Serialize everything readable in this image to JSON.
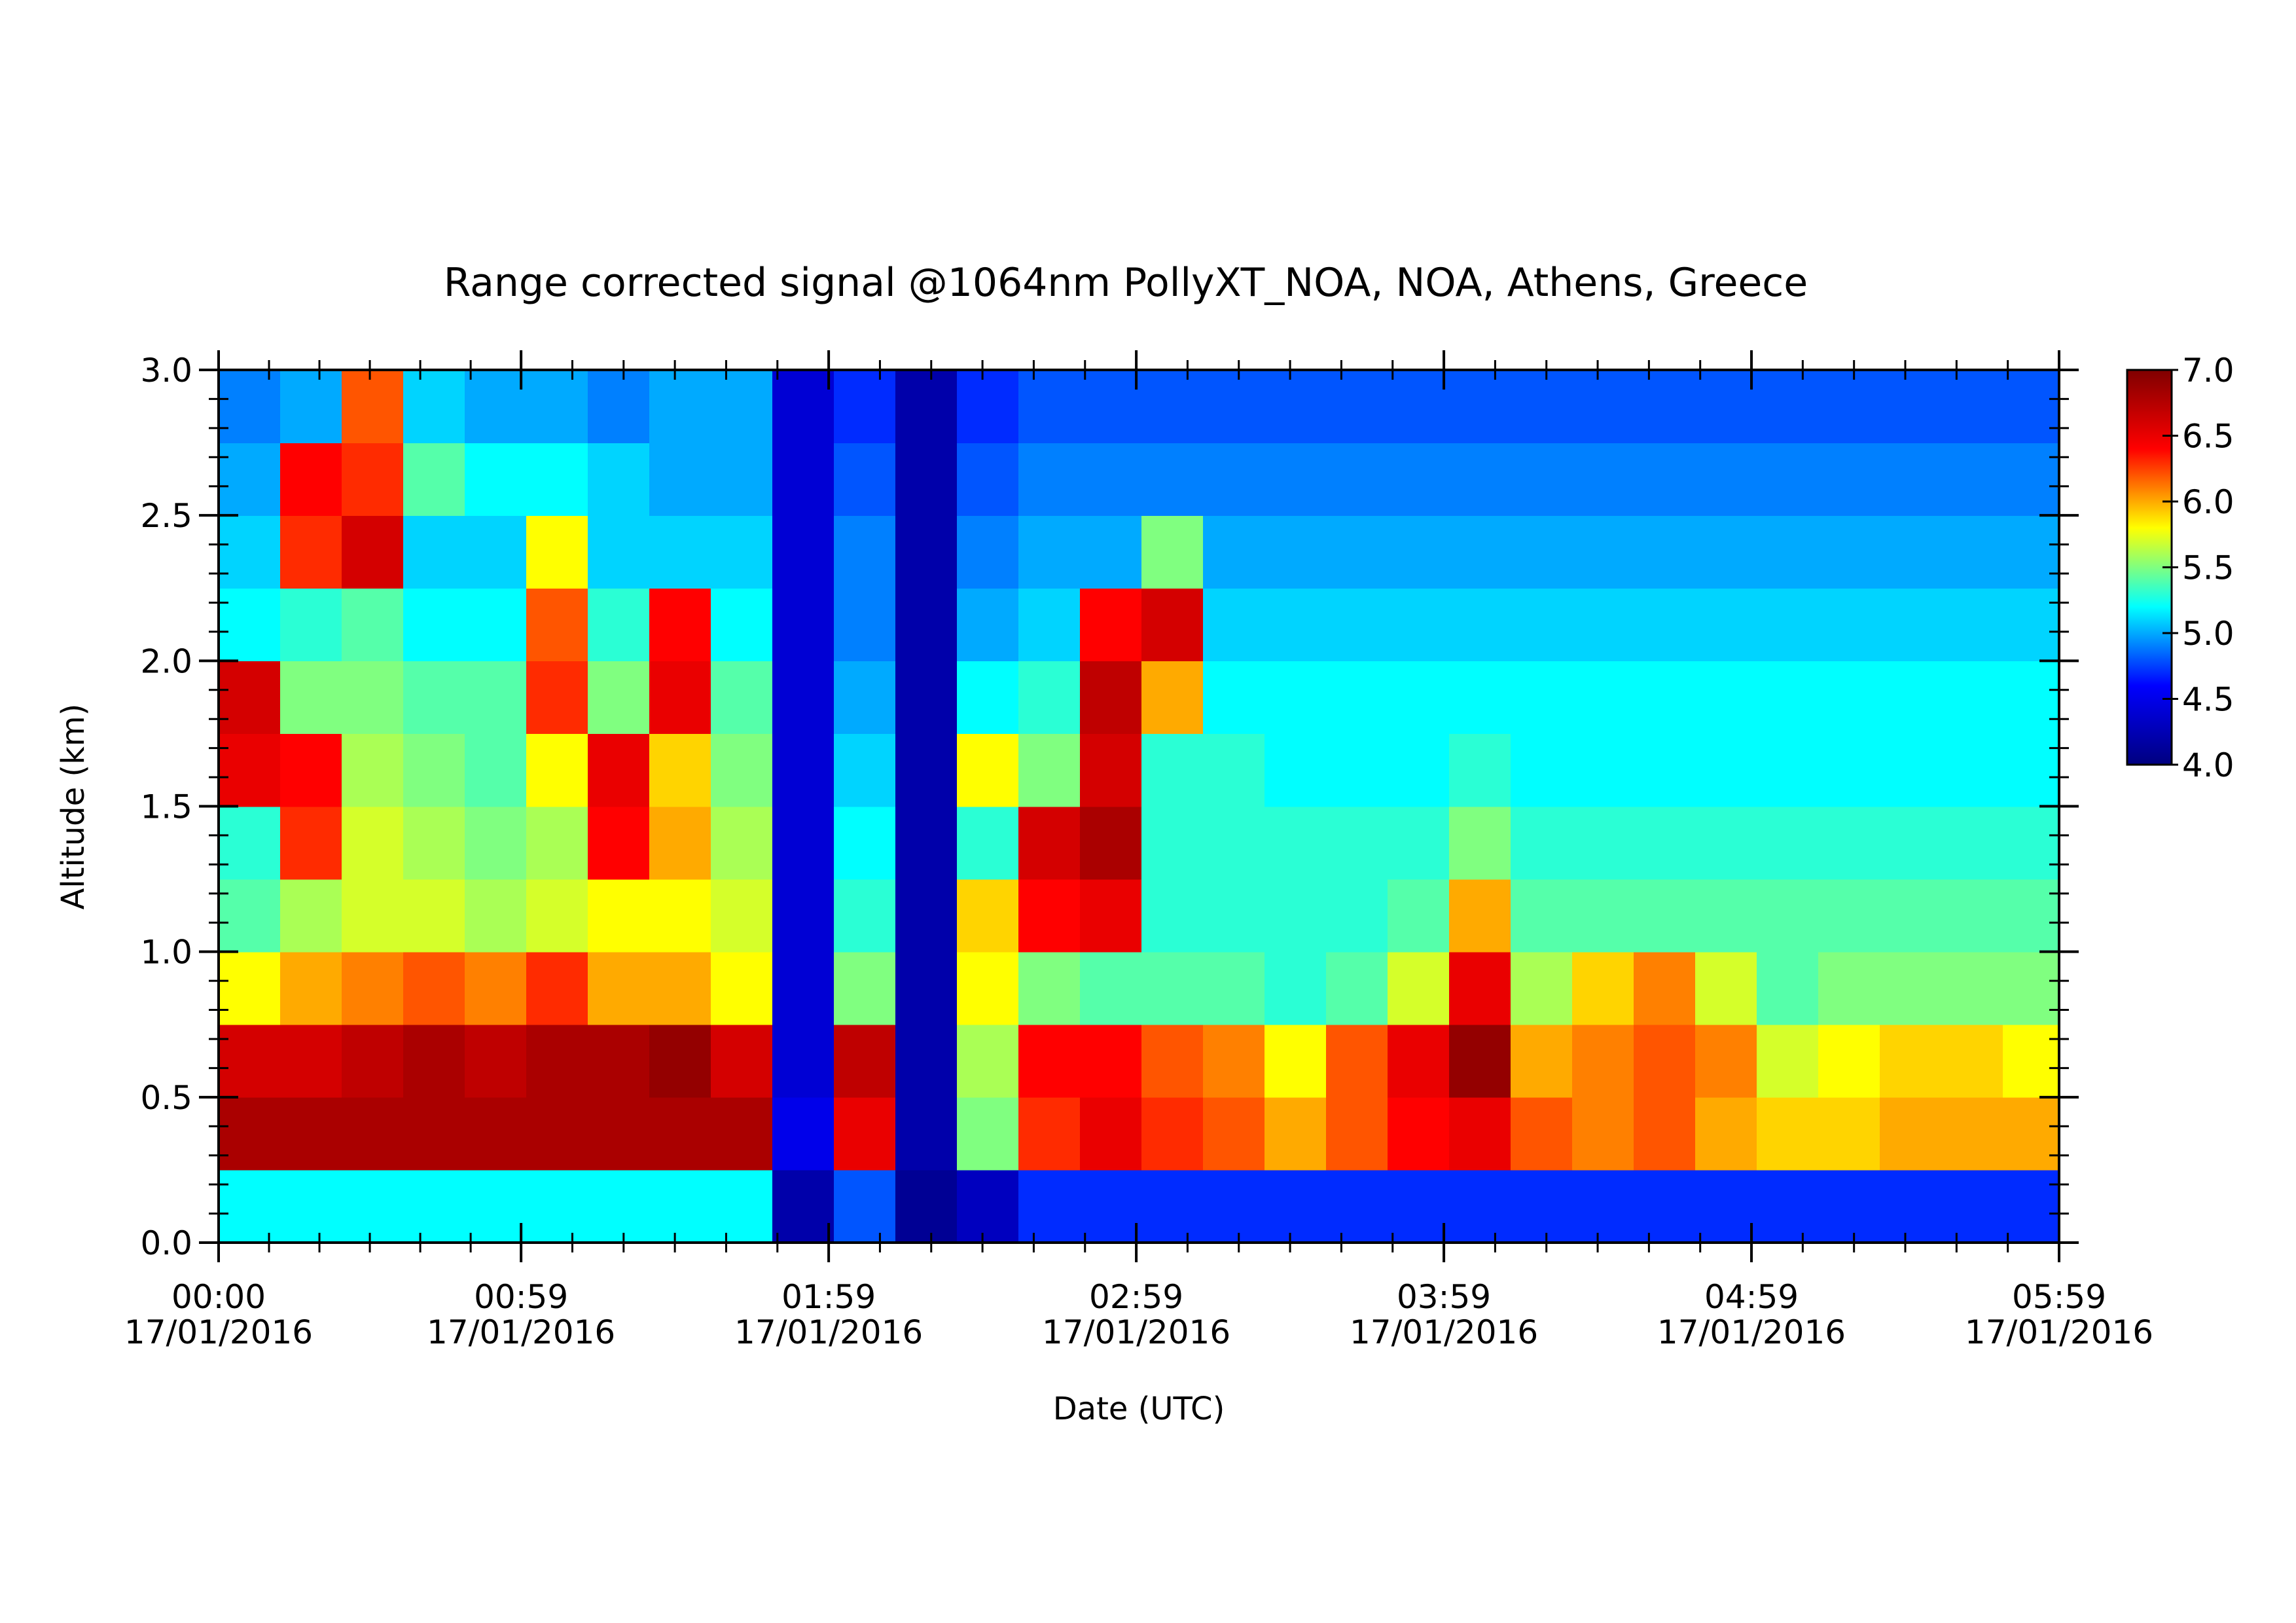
{
  "chart_data": {
    "type": "heatmap",
    "title": "Range corrected signal @1064nm  PollyXT_NOA, NOA, Athens, Greece",
    "xlabel": "Date (UTC)",
    "ylabel": "Altitude (km)",
    "x": [
      0,
      12,
      24,
      36,
      48,
      60,
      72,
      84,
      96,
      108,
      120,
      132,
      144,
      156,
      168,
      180,
      192,
      204,
      216,
      228,
      240,
      252,
      264,
      276,
      288,
      300,
      312,
      324,
      336,
      348
    ],
    "y": [
      0,
      0.25,
      0.5,
      0.75,
      1.0,
      1.25,
      1.5,
      1.75,
      2.0,
      2.25,
      2.5,
      2.75
    ],
    "values": [
      [
        5.2,
        5.2,
        5.2,
        5.2,
        5.2,
        5.2,
        5.2,
        5.2,
        5.2,
        4.2,
        4.8,
        4.1,
        4.3,
        4.7,
        4.7,
        4.7,
        4.7,
        4.7,
        4.7,
        4.7,
        4.7,
        4.7,
        4.7,
        4.7,
        4.7,
        4.7,
        4.7,
        4.7,
        4.7,
        4.7
      ],
      [
        6.8,
        6.8,
        6.8,
        6.8,
        6.8,
        6.8,
        6.8,
        6.8,
        6.8,
        4.5,
        6.5,
        4.2,
        5.5,
        6.3,
        6.5,
        6.3,
        6.2,
        6.0,
        6.2,
        6.4,
        6.5,
        6.2,
        6.1,
        6.2,
        6.0,
        5.9,
        5.9,
        6.0,
        6.0,
        6.0
      ],
      [
        6.6,
        6.6,
        6.7,
        6.8,
        6.7,
        6.8,
        6.8,
        6.9,
        6.6,
        4.4,
        6.7,
        4.2,
        5.6,
        6.4,
        6.4,
        6.2,
        6.1,
        5.8,
        6.2,
        6.5,
        6.9,
        6.0,
        6.1,
        6.2,
        6.1,
        5.7,
        5.8,
        5.9,
        5.9,
        5.8
      ],
      [
        5.8,
        6.0,
        6.1,
        6.2,
        6.1,
        6.3,
        6.0,
        6.0,
        5.8,
        4.4,
        5.5,
        4.2,
        5.8,
        5.5,
        5.4,
        5.4,
        5.4,
        5.3,
        5.4,
        5.7,
        6.5,
        5.6,
        5.9,
        6.1,
        5.7,
        5.4,
        5.5,
        5.5,
        5.5,
        5.5
      ],
      [
        5.4,
        5.6,
        5.7,
        5.7,
        5.6,
        5.7,
        5.8,
        5.8,
        5.7,
        4.4,
        5.3,
        4.2,
        5.9,
        6.4,
        6.5,
        5.3,
        5.3,
        5.3,
        5.3,
        5.4,
        6.0,
        5.4,
        5.4,
        5.4,
        5.4,
        5.4,
        5.4,
        5.4,
        5.4,
        5.4
      ],
      [
        5.3,
        6.3,
        5.7,
        5.6,
        5.5,
        5.6,
        6.4,
        6.0,
        5.6,
        4.4,
        5.2,
        4.2,
        5.3,
        6.6,
        6.8,
        5.3,
        5.3,
        5.3,
        5.3,
        5.3,
        5.5,
        5.3,
        5.3,
        5.3,
        5.3,
        5.3,
        5.3,
        5.3,
        5.3,
        5.3
      ],
      [
        6.5,
        6.4,
        5.6,
        5.5,
        5.4,
        5.8,
        6.5,
        5.9,
        5.5,
        4.4,
        5.1,
        4.2,
        5.8,
        5.5,
        6.6,
        5.3,
        5.3,
        5.2,
        5.2,
        5.2,
        5.3,
        5.2,
        5.2,
        5.2,
        5.2,
        5.2,
        5.2,
        5.2,
        5.2,
        5.2
      ],
      [
        6.6,
        5.5,
        5.5,
        5.4,
        5.4,
        6.3,
        5.5,
        6.5,
        5.4,
        4.4,
        5.0,
        4.2,
        5.2,
        5.3,
        6.7,
        6.0,
        5.2,
        5.2,
        5.2,
        5.2,
        5.2,
        5.2,
        5.2,
        5.2,
        5.2,
        5.2,
        5.2,
        5.2,
        5.2,
        5.2
      ],
      [
        5.2,
        5.3,
        5.4,
        5.2,
        5.2,
        6.2,
        5.3,
        6.4,
        5.2,
        4.4,
        4.9,
        4.2,
        5.0,
        5.1,
        6.4,
        6.6,
        5.1,
        5.1,
        5.1,
        5.1,
        5.1,
        5.1,
        5.1,
        5.1,
        5.1,
        5.1,
        5.1,
        5.1,
        5.1,
        5.1
      ],
      [
        5.1,
        6.3,
        6.6,
        5.1,
        5.1,
        5.8,
        5.1,
        5.1,
        5.1,
        4.4,
        4.9,
        4.2,
        4.9,
        5.0,
        5.0,
        5.5,
        5.0,
        5.0,
        5.0,
        5.0,
        5.0,
        5.0,
        5.0,
        5.0,
        5.0,
        5.0,
        5.0,
        5.0,
        5.0,
        5.0
      ],
      [
        5.0,
        6.4,
        6.3,
        5.4,
        5.2,
        5.2,
        5.1,
        5.0,
        5.0,
        4.4,
        4.8,
        4.2,
        4.8,
        4.9,
        4.9,
        4.9,
        4.9,
        4.9,
        4.9,
        4.9,
        4.9,
        4.9,
        4.9,
        4.9,
        4.9,
        4.9,
        4.9,
        4.9,
        4.9,
        4.9
      ],
      [
        4.9,
        5.0,
        6.2,
        5.1,
        5.0,
        5.0,
        4.9,
        5.0,
        5.0,
        4.4,
        4.7,
        4.2,
        4.7,
        4.8,
        4.8,
        4.8,
        4.8,
        4.8,
        4.8,
        4.8,
        4.8,
        4.8,
        4.8,
        4.8,
        4.8,
        4.8,
        4.8,
        4.8,
        4.8,
        4.8
      ]
    ],
    "xlim": [
      0,
      359
    ],
    "ylim": [
      0,
      3
    ],
    "xticks": [
      {
        "value": 0,
        "label": "00:00\n17/01/2016"
      },
      {
        "value": 59,
        "label": "00:59\n17/01/2016"
      },
      {
        "value": 119,
        "label": "01:59\n17/01/2016"
      },
      {
        "value": 179,
        "label": "02:59\n17/01/2016"
      },
      {
        "value": 239,
        "label": "03:59\n17/01/2016"
      },
      {
        "value": 299,
        "label": "04:59\n17/01/2016"
      },
      {
        "value": 359,
        "label": "05:59\n17/01/2016"
      }
    ],
    "yticks": [
      {
        "value": 0,
        "label": "0.0"
      },
      {
        "value": 0.5,
        "label": "0.5"
      },
      {
        "value": 1,
        "label": "1.0"
      },
      {
        "value": 1.5,
        "label": "1.5"
      },
      {
        "value": 2,
        "label": "2.0"
      },
      {
        "value": 2.5,
        "label": "2.5"
      },
      {
        "value": 3,
        "label": "3.0"
      }
    ],
    "zlim": [
      4,
      7
    ],
    "zticks": [
      {
        "value": 4,
        "label": "4.0"
      },
      {
        "value": 4.5,
        "label": "4.5"
      },
      {
        "value": 5,
        "label": "5.0"
      },
      {
        "value": 5.5,
        "label": "5.5"
      },
      {
        "value": 6,
        "label": "6.0"
      },
      {
        "value": 6.5,
        "label": "6.5"
      },
      {
        "value": 7,
        "label": "7.0"
      }
    ],
    "colors": [
      "#00007f",
      "#0000ff",
      "#00ffff",
      "#ffff00",
      "#ff0000",
      "#7f0000"
    ]
  }
}
